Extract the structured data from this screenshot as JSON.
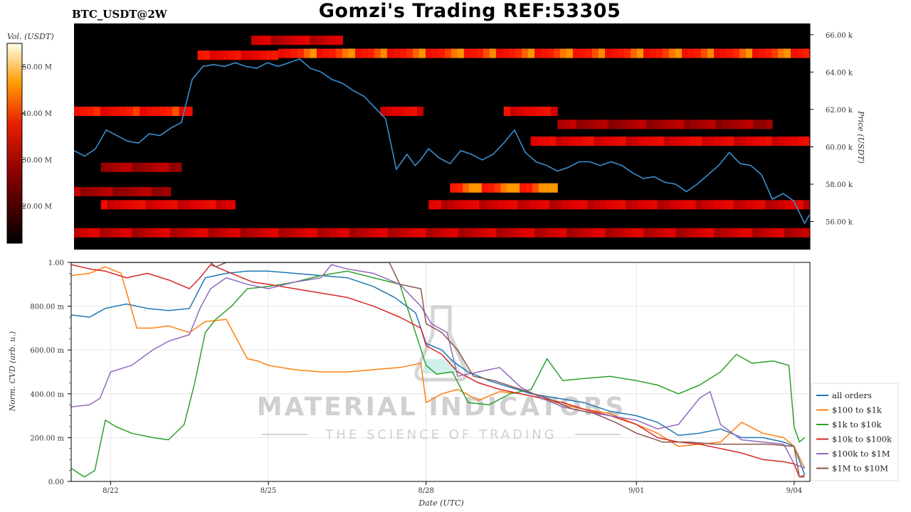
{
  "header": {
    "symbol": "BTC_USDT@2W",
    "title": "Gomzi's Trading REF:53305"
  },
  "colorbar": {
    "label": "Vol. (USDT)",
    "ticks": [
      "50.00 M",
      "40.00 M",
      "30.00 M",
      "20.00 M"
    ],
    "tick_values": [
      50,
      40,
      30,
      20
    ],
    "range": [
      12,
      55
    ]
  },
  "watermark": {
    "line1": "MATERIAL INDICATORS",
    "line2": "THE SCIENCE OF TRADING"
  },
  "colors": {
    "all_orders": "#1f77b4",
    "100_1k": "#ff7f0e",
    "1k_10k": "#2ca02c",
    "10k_100k": "#d62728",
    "100k_1m": "#9467bd",
    "1m_10m": "#8c564b",
    "heatmap_bg": "#000000",
    "price_line": "#3a8fd0"
  },
  "chart_data": [
    {
      "type": "heatmap",
      "title": "",
      "ylabel": "Price (USDT)",
      "y_ticks": [
        "66.00 k",
        "64.00 k",
        "62.00 k",
        "60.00 k",
        "58.00 k",
        "56.00 k"
      ],
      "y_tick_values": [
        66,
        64,
        62,
        60,
        58,
        56
      ],
      "ylim": [
        54.5,
        66.6
      ],
      "xlim": [
        21.5,
        35.2
      ],
      "price_series": {
        "name": "price",
        "x": [
          21.5,
          21.7,
          21.9,
          22.1,
          22.3,
          22.5,
          22.7,
          22.9,
          23.1,
          23.3,
          23.5,
          23.7,
          23.9,
          24.1,
          24.3,
          24.5,
          24.7,
          24.9,
          25.1,
          25.3,
          25.5,
          25.7,
          25.9,
          26.1,
          26.3,
          26.5,
          26.7,
          26.9,
          27.1,
          27.3,
          27.5,
          27.7,
          27.85,
          27.95,
          28.1,
          28.3,
          28.5,
          28.7,
          28.9,
          29.1,
          29.3,
          29.5,
          29.7,
          29.9,
          30.1,
          30.3,
          30.5,
          30.7,
          30.9,
          31.1,
          31.3,
          31.5,
          31.7,
          31.9,
          32.1,
          32.3,
          32.5,
          32.7,
          32.9,
          33.1,
          33.3,
          33.5,
          33.7,
          33.9,
          34.1,
          34.3,
          34.5,
          34.7,
          34.9,
          35.1,
          35.2
        ],
        "y": [
          59.8,
          59.5,
          59.9,
          60.9,
          60.6,
          60.3,
          60.2,
          60.7,
          60.6,
          61.0,
          61.3,
          63.6,
          64.3,
          64.4,
          64.3,
          64.5,
          64.3,
          64.2,
          64.5,
          64.3,
          64.5,
          64.7,
          64.2,
          64.0,
          63.6,
          63.4,
          63.0,
          62.7,
          62.1,
          61.5,
          58.8,
          59.6,
          59.0,
          59.3,
          59.9,
          59.4,
          59.1,
          59.8,
          59.6,
          59.3,
          59.6,
          60.2,
          60.9,
          59.7,
          59.2,
          59.0,
          58.7,
          58.9,
          59.2,
          59.2,
          59.0,
          59.2,
          59.0,
          58.6,
          58.3,
          58.4,
          58.1,
          58.0,
          57.6,
          58.0,
          58.5,
          59.0,
          59.7,
          59.1,
          59.0,
          58.5,
          57.2,
          57.5,
          57.1,
          55.9,
          56.4
        ]
      },
      "bands": [
        {
          "y": 65.0,
          "x0": 25.3,
          "x1": 35.2,
          "level": 0.85
        },
        {
          "y": 64.9,
          "x0": 23.8,
          "x1": 25.3,
          "level": 0.65
        },
        {
          "y": 65.7,
          "x0": 24.8,
          "x1": 26.5,
          "level": 0.45
        },
        {
          "y": 61.9,
          "x0": 21.5,
          "x1": 23.7,
          "level": 0.75
        },
        {
          "y": 61.9,
          "x0": 27.2,
          "x1": 28.0,
          "level": 0.55
        },
        {
          "y": 61.9,
          "x0": 29.5,
          "x1": 30.5,
          "level": 0.6
        },
        {
          "y": 61.2,
          "x0": 30.5,
          "x1": 34.5,
          "level": 0.35
        },
        {
          "y": 60.3,
          "x0": 30.0,
          "x1": 35.2,
          "level": 0.55
        },
        {
          "y": 57.8,
          "x0": 28.5,
          "x1": 30.5,
          "level": 0.95
        },
        {
          "y": 56.9,
          "x0": 22.0,
          "x1": 24.5,
          "level": 0.55
        },
        {
          "y": 56.9,
          "x0": 28.1,
          "x1": 35.2,
          "level": 0.5
        },
        {
          "y": 55.4,
          "x0": 21.5,
          "x1": 35.2,
          "level": 0.45
        },
        {
          "y": 58.9,
          "x0": 22.0,
          "x1": 23.5,
          "level": 0.35
        },
        {
          "y": 57.6,
          "x0": 21.5,
          "x1": 23.3,
          "level": 0.35
        }
      ]
    },
    {
      "type": "line",
      "title": "",
      "xlabel": "Date (UTC)",
      "ylabel": "Norm. CVD (arb. u.)",
      "x_ticks": [
        "8/22",
        "8/25",
        "8/28",
        "9/01",
        "9/04"
      ],
      "x_tick_values": [
        22,
        25,
        28,
        32,
        35
      ],
      "xlim": [
        21.25,
        35.3
      ],
      "ylim": [
        0,
        1
      ],
      "y_ticks": [
        "1.00",
        "800.00 m",
        "600.00 m",
        "400.00 m",
        "200.00 m",
        "0.00"
      ],
      "y_tick_values": [
        1.0,
        0.8,
        0.6,
        0.4,
        0.2,
        0.0
      ],
      "legend": "right",
      "series": [
        {
          "name": "all orders",
          "color": "#1f77b4",
          "x": [
            21.25,
            21.6,
            21.9,
            22.3,
            22.7,
            23.1,
            23.5,
            23.8,
            24.2,
            24.6,
            25.0,
            25.5,
            26.0,
            26.5,
            27.0,
            27.4,
            27.8,
            28.0,
            28.3,
            28.5,
            28.8,
            29.2,
            29.6,
            30.0,
            30.5,
            31.0,
            31.5,
            32.0,
            32.4,
            32.8,
            33.2,
            33.6,
            34.0,
            34.4,
            34.8,
            35.0,
            35.2
          ],
          "y": [
            0.76,
            0.75,
            0.79,
            0.81,
            0.79,
            0.78,
            0.79,
            0.93,
            0.95,
            0.96,
            0.96,
            0.95,
            0.94,
            0.93,
            0.89,
            0.84,
            0.77,
            0.63,
            0.6,
            0.55,
            0.5,
            0.46,
            0.43,
            0.4,
            0.38,
            0.36,
            0.32,
            0.3,
            0.27,
            0.21,
            0.22,
            0.24,
            0.2,
            0.2,
            0.18,
            0.16,
            0.03
          ]
        },
        {
          "name": "$100 to $1k",
          "color": "#ff7f0e",
          "x": [
            21.25,
            21.6,
            21.9,
            22.2,
            22.5,
            22.8,
            23.1,
            23.5,
            23.8,
            24.2,
            24.6,
            24.8,
            25.0,
            25.5,
            26.0,
            26.5,
            27.0,
            27.5,
            27.9,
            28.0,
            28.3,
            28.6,
            29.0,
            29.4,
            29.8,
            30.2,
            30.6,
            31.0,
            31.5,
            32.0,
            32.4,
            32.8,
            33.2,
            33.6,
            34.0,
            34.4,
            34.8,
            35.0,
            35.2
          ],
          "y": [
            0.94,
            0.95,
            0.98,
            0.95,
            0.7,
            0.7,
            0.71,
            0.68,
            0.73,
            0.74,
            0.56,
            0.55,
            0.53,
            0.51,
            0.5,
            0.5,
            0.51,
            0.52,
            0.54,
            0.36,
            0.4,
            0.42,
            0.37,
            0.41,
            0.4,
            0.38,
            0.35,
            0.33,
            0.31,
            0.26,
            0.22,
            0.16,
            0.17,
            0.18,
            0.27,
            0.22,
            0.2,
            0.16,
            0.06
          ]
        },
        {
          "name": "$1k to $10k",
          "color": "#2ca02c",
          "x": [
            21.25,
            21.5,
            21.7,
            21.9,
            22.1,
            22.4,
            22.8,
            23.1,
            23.4,
            23.6,
            23.8,
            24.0,
            24.3,
            24.6,
            25.0,
            25.5,
            26.0,
            26.5,
            27.0,
            27.5,
            28.0,
            28.2,
            28.5,
            28.8,
            29.2,
            29.6,
            30.0,
            30.3,
            30.6,
            31.0,
            31.5,
            32.0,
            32.4,
            32.8,
            33.2,
            33.6,
            33.9,
            34.2,
            34.6,
            34.9,
            35.0,
            35.1,
            35.2
          ],
          "y": [
            0.06,
            0.02,
            0.05,
            0.28,
            0.25,
            0.22,
            0.2,
            0.19,
            0.26,
            0.45,
            0.68,
            0.74,
            0.8,
            0.88,
            0.89,
            0.91,
            0.94,
            0.96,
            0.93,
            0.9,
            0.53,
            0.49,
            0.5,
            0.36,
            0.35,
            0.4,
            0.42,
            0.56,
            0.46,
            0.47,
            0.48,
            0.46,
            0.44,
            0.4,
            0.44,
            0.5,
            0.58,
            0.54,
            0.55,
            0.53,
            0.25,
            0.18,
            0.2
          ]
        },
        {
          "name": "$10k to $100k",
          "color": "#d62728",
          "x": [
            21.25,
            21.6,
            21.9,
            22.3,
            22.7,
            23.1,
            23.5,
            23.7,
            23.9,
            24.3,
            24.7,
            25.0,
            25.5,
            26.0,
            26.5,
            27.0,
            27.5,
            27.9,
            28.0,
            28.3,
            28.6,
            29.0,
            29.4,
            29.8,
            30.2,
            30.6,
            31.0,
            31.5,
            32.0,
            32.4,
            32.8,
            33.2,
            33.6,
            34.0,
            34.4,
            34.8,
            35.0,
            35.1,
            35.2
          ],
          "y": [
            0.99,
            0.97,
            0.96,
            0.93,
            0.95,
            0.92,
            0.88,
            0.93,
            0.99,
            0.95,
            0.91,
            0.9,
            0.88,
            0.86,
            0.84,
            0.8,
            0.75,
            0.7,
            0.62,
            0.58,
            0.5,
            0.45,
            0.42,
            0.4,
            0.38,
            0.36,
            0.33,
            0.3,
            0.26,
            0.2,
            0.18,
            0.17,
            0.15,
            0.13,
            0.1,
            0.09,
            0.08,
            0.02,
            0.03
          ]
        },
        {
          "name": "$100k to $1M",
          "color": "#9467bd",
          "x": [
            21.25,
            21.6,
            21.8,
            22.0,
            22.4,
            22.8,
            23.1,
            23.5,
            23.7,
            23.9,
            24.2,
            24.6,
            25.0,
            25.5,
            26.0,
            26.2,
            26.5,
            27.0,
            27.5,
            27.9,
            28.1,
            28.4,
            28.6,
            29.0,
            29.4,
            29.8,
            30.2,
            30.6,
            31.0,
            31.5,
            32.0,
            32.4,
            32.8,
            33.2,
            33.4,
            33.6,
            34.0,
            34.4,
            34.8,
            35.0,
            35.2
          ],
          "y": [
            0.34,
            0.35,
            0.38,
            0.5,
            0.53,
            0.6,
            0.64,
            0.67,
            0.79,
            0.88,
            0.93,
            0.9,
            0.88,
            0.91,
            0.93,
            0.99,
            0.97,
            0.95,
            0.9,
            0.8,
            0.72,
            0.68,
            0.48,
            0.5,
            0.52,
            0.43,
            0.38,
            0.34,
            0.32,
            0.3,
            0.28,
            0.24,
            0.26,
            0.38,
            0.41,
            0.26,
            0.19,
            0.18,
            0.17,
            0.08,
            0.06
          ]
        },
        {
          "name": "$1M to $10M",
          "color": "#8c564b",
          "x": [
            21.25,
            23.9,
            24.0,
            24.2,
            27.3,
            27.5,
            27.9,
            28.0,
            28.3,
            28.6,
            28.9,
            29.3,
            29.8,
            30.3,
            30.8,
            31.2,
            31.6,
            32.0,
            32.5,
            33.0,
            33.5,
            34.0,
            34.5,
            35.0,
            35.1,
            35.2
          ],
          "y": [
            1.0,
            1.0,
            0.98,
            1.0,
            1.0,
            0.9,
            0.88,
            0.72,
            0.68,
            0.6,
            0.48,
            0.46,
            0.42,
            0.38,
            0.33,
            0.31,
            0.27,
            0.22,
            0.18,
            0.18,
            0.17,
            0.17,
            0.17,
            0.16,
            0.02,
            0.02
          ]
        }
      ]
    }
  ]
}
